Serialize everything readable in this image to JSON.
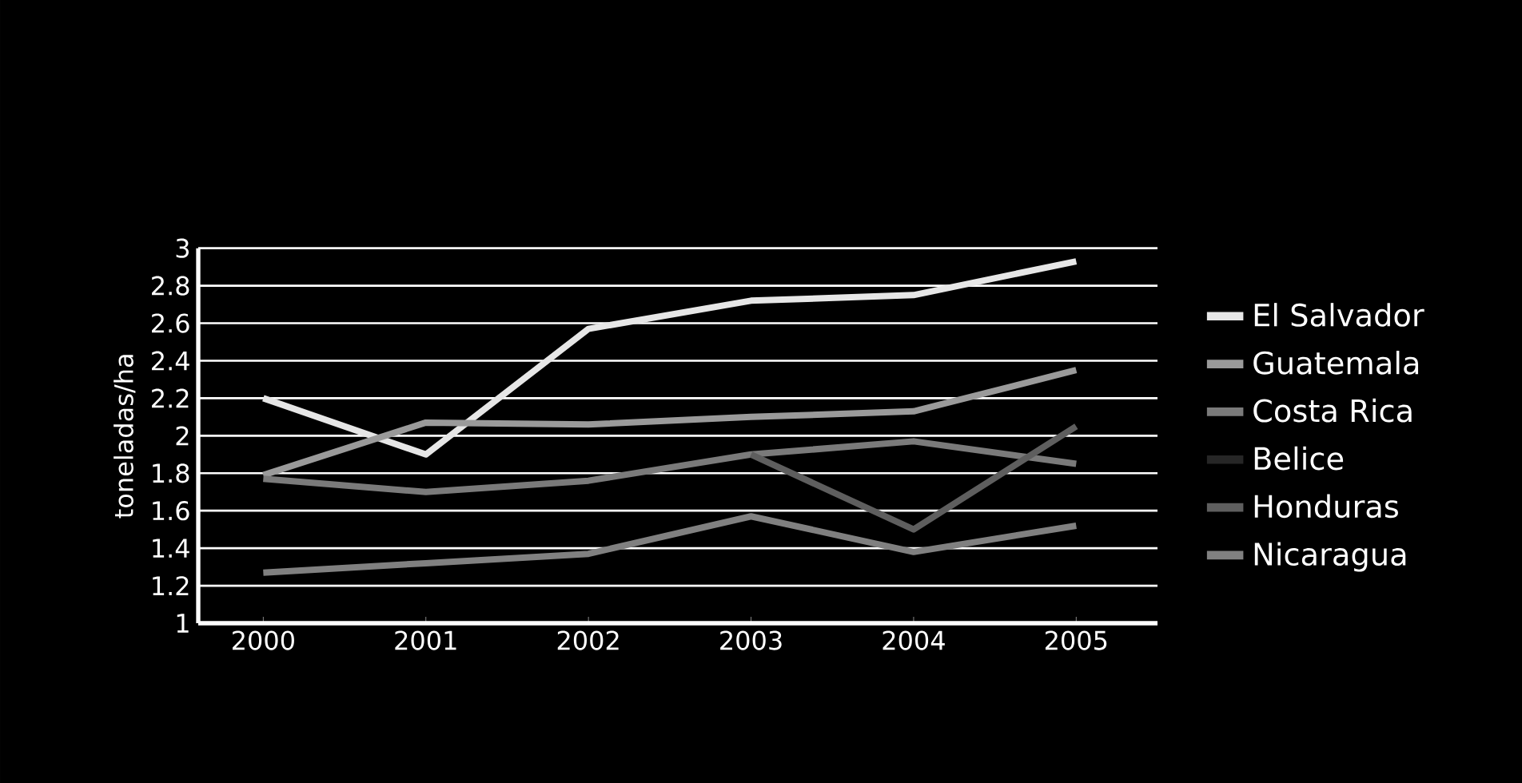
{
  "chart_data": {
    "type": "line",
    "ylabel": "toneladas/ha",
    "x": [
      2000,
      2001,
      2002,
      2003,
      2004,
      2005
    ],
    "xlim": [
      1999.6,
      2005.5
    ],
    "xticks": [
      2000,
      2001,
      2002,
      2003,
      2004,
      2005
    ],
    "ylim": [
      1,
      3
    ],
    "yticks": [
      1,
      1.2,
      1.4,
      1.6,
      1.8,
      2,
      2.2,
      2.4,
      2.6,
      2.8,
      3
    ],
    "grid": "y",
    "legend": "right",
    "marker": "none",
    "line_style": "solid",
    "series": [
      {
        "name": "El Salvador",
        "color": "#e6e6e6",
        "values": [
          2.2,
          1.9,
          2.57,
          2.72,
          2.75,
          2.93
        ]
      },
      {
        "name": "Guatemala",
        "color": "#9a9a9a",
        "values": [
          1.79,
          2.07,
          2.06,
          2.1,
          2.13,
          2.35
        ]
      },
      {
        "name": "Costa Rica",
        "color": "#7a7a7a",
        "values": [
          1.77,
          1.7,
          1.76,
          1.9,
          1.97,
          1.85
        ]
      },
      {
        "name": "Belice",
        "color": "#262626",
        "values": [
          null,
          null,
          null,
          null,
          null,
          null
        ]
      },
      {
        "name": "Honduras",
        "color": "#5e5e5e",
        "values": [
          null,
          null,
          null,
          1.9,
          1.5,
          2.05
        ]
      },
      {
        "name": "Nicaragua",
        "color": "#808080",
        "values": [
          1.27,
          1.32,
          1.37,
          1.57,
          1.38,
          1.52
        ]
      }
    ]
  }
}
